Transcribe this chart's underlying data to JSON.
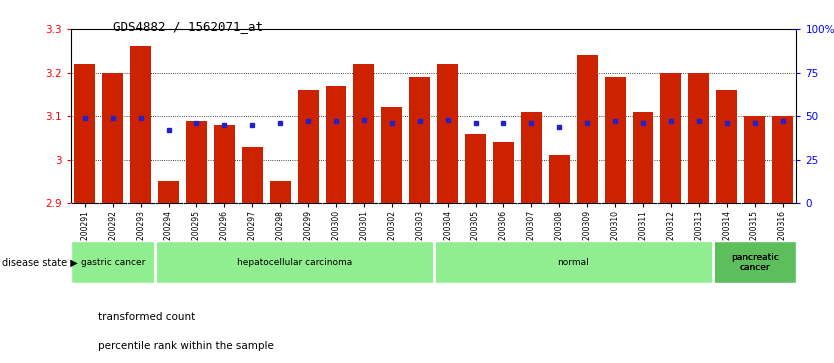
{
  "title": "GDS4882 / 1562071_at",
  "samples": [
    "GSM1200291",
    "GSM1200292",
    "GSM1200293",
    "GSM1200294",
    "GSM1200295",
    "GSM1200296",
    "GSM1200297",
    "GSM1200298",
    "GSM1200299",
    "GSM1200300",
    "GSM1200301",
    "GSM1200302",
    "GSM1200303",
    "GSM1200304",
    "GSM1200305",
    "GSM1200306",
    "GSM1200307",
    "GSM1200308",
    "GSM1200309",
    "GSM1200310",
    "GSM1200311",
    "GSM1200312",
    "GSM1200313",
    "GSM1200314",
    "GSM1200315",
    "GSM1200316"
  ],
  "bar_values": [
    3.22,
    3.2,
    3.26,
    2.95,
    3.09,
    3.08,
    3.03,
    2.95,
    3.16,
    3.17,
    3.22,
    3.12,
    3.19,
    3.22,
    3.06,
    3.04,
    3.11,
    3.01,
    3.24,
    3.19,
    3.11,
    3.2,
    3.2,
    3.16,
    3.1,
    3.1
  ],
  "percentile_values_pct": [
    49,
    49,
    49,
    42,
    46,
    45,
    45,
    46,
    47,
    47,
    48,
    46,
    47,
    48,
    46,
    46,
    46,
    44,
    46,
    47,
    46,
    47,
    47,
    46,
    46,
    47
  ],
  "disease_groups": [
    {
      "label": "gastric cancer",
      "start": 0,
      "end": 3,
      "color": "#90EE90"
    },
    {
      "label": "hepatocellular carcinoma",
      "start": 3,
      "end": 13,
      "color": "#90EE90"
    },
    {
      "label": "normal",
      "start": 13,
      "end": 23,
      "color": "#90EE90"
    },
    {
      "label": "pancreatic\ncancer",
      "start": 23,
      "end": 26,
      "color": "#5CBF5C"
    }
  ],
  "ymin": 2.9,
  "ymax": 3.3,
  "yticks": [
    2.9,
    3.0,
    3.1,
    3.2,
    3.3
  ],
  "right_yticks": [
    0,
    25,
    50,
    75,
    100
  ],
  "bar_color": "#CC2200",
  "percentile_color": "#2222CC",
  "bar_width": 0.75,
  "background_color": "#FFFFFF",
  "legend_labels": [
    "transformed count",
    "percentile rank within the sample"
  ],
  "grid_lines": [
    3.0,
    3.1,
    3.2
  ],
  "disease_state_label": "disease state ▶"
}
